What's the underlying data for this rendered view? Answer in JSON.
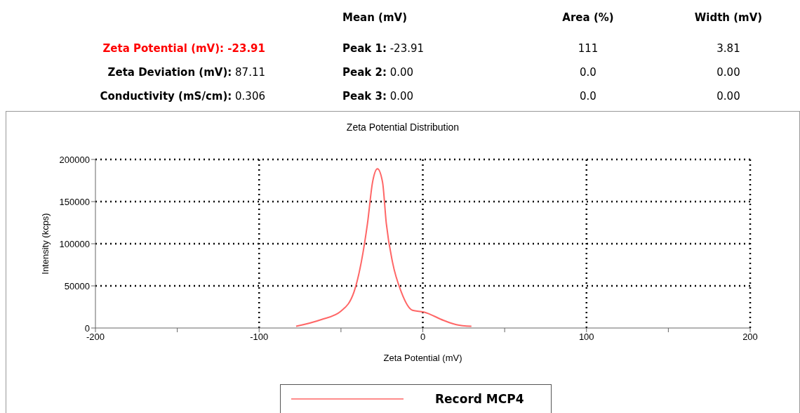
{
  "chart_data": {
    "type": "line",
    "title": "Zeta Potential Distribution",
    "xlabel": "Zeta Potential (mV)",
    "ylabel": "Intensity (kcps)",
    "annotations": [
      "Mean (mV)",
      "Area (%)",
      "Width (mV)",
      "Zeta Potential (mV): -23.91",
      "Peak 1: -23.91",
      "111",
      "3.81",
      "Zeta Deviation (mV): 87.11",
      "Peak 2: 0.00",
      "0.0",
      "0.00",
      "Conductivity (mS/cm): 0.306",
      "Peak 3: 0.00",
      "0.0",
      "0.00"
    ],
    "series": [
      {
        "name": "Record MCP4",
        "color": "#ff6666",
        "x": [
          -77.4,
          -62,
          -50,
          -42,
          -37.6,
          -33.8,
          -30.7,
          -27.7,
          -24.6,
          -22.3,
          -18.5,
          -13.2,
          -6.3,
          0.6,
          12.8,
          20.5,
          29.7
        ],
        "values": [
          2000,
          10000,
          20000,
          43000,
          78000,
          124000,
          173000,
          189000,
          173000,
          124000,
          78000,
          43000,
          21000,
          19000,
          9000,
          4000,
          2000
        ]
      }
    ],
    "xlim": [
      -200,
      200
    ],
    "xticks": [
      -200,
      {
        "value": -150,
        "label": null
      },
      -100,
      {
        "value": -50,
        "label": null
      },
      0,
      {
        "value": 50,
        "label": null
      },
      100,
      {
        "value": 150,
        "label": null
      },
      200
    ],
    "ylim": [
      0,
      200000
    ],
    "yticks": [
      0,
      50000,
      100000,
      150000,
      200000
    ],
    "grid": true,
    "legend": "bottom",
    "marker": "none",
    "line_style": "solid"
  }
}
